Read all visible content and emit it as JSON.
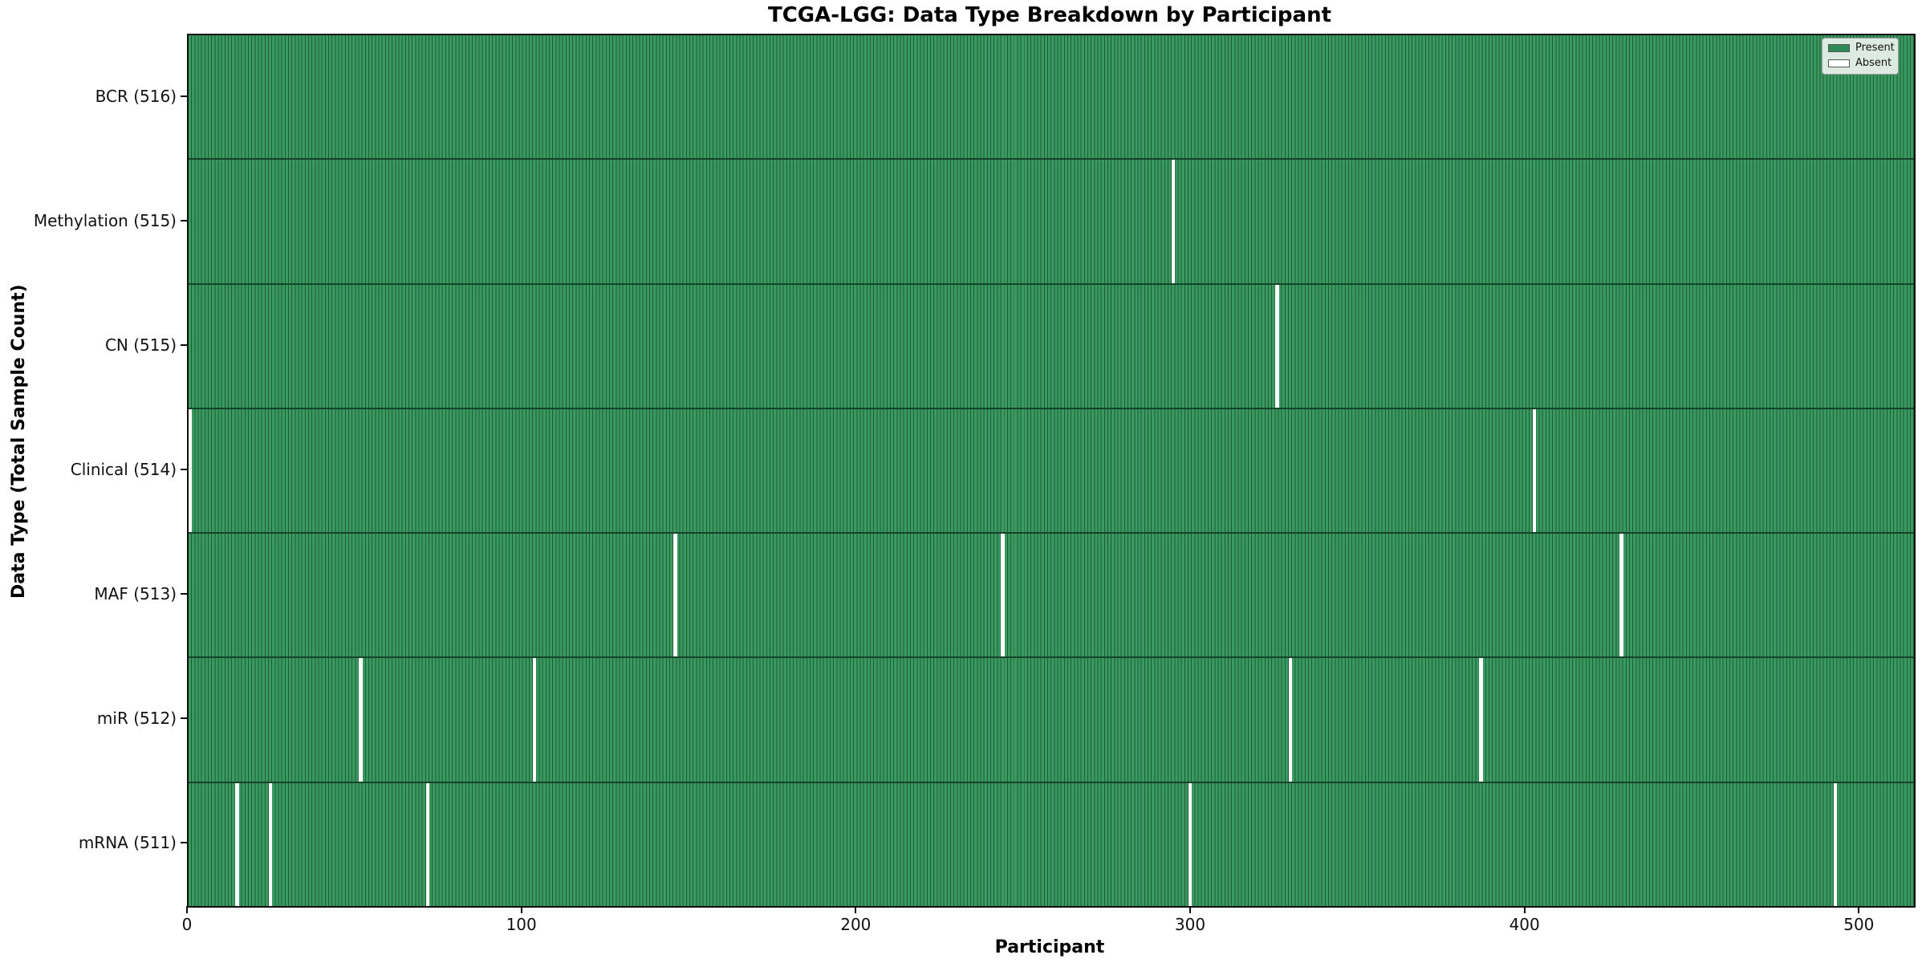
{
  "chart_data": {
    "type": "heatmap",
    "title": "TCGA-LGG: Data Type Breakdown by Participant",
    "xlabel": "Participant",
    "ylabel": "Data Type (Total Sample Count)",
    "x_ticks": [
      0,
      100,
      200,
      300,
      400,
      500
    ],
    "x_range": [
      0,
      516
    ],
    "n_participants": 516,
    "grid": false,
    "legend": {
      "position": "upper-right",
      "entries": [
        {
          "label": "Present",
          "color": "#2e8b57"
        },
        {
          "label": "Absent",
          "color": "#ffffff"
        }
      ]
    },
    "rows": [
      {
        "label": "BCR (516)",
        "data_type": "BCR",
        "present_count": 516,
        "absent_participants": []
      },
      {
        "label": "Methylation (515)",
        "data_type": "Methylation",
        "present_count": 515,
        "absent_participants": [
          294
        ]
      },
      {
        "label": "CN (515)",
        "data_type": "CN",
        "present_count": 515,
        "absent_participants": [
          325
        ]
      },
      {
        "label": "Clinical (514)",
        "data_type": "Clinical",
        "present_count": 514,
        "absent_participants": [
          0,
          402
        ]
      },
      {
        "label": "MAF (513)",
        "data_type": "MAF",
        "present_count": 513,
        "absent_participants": [
          145,
          243,
          428
        ]
      },
      {
        "label": "miR (512)",
        "data_type": "miR",
        "present_count": 512,
        "absent_participants": [
          51,
          103,
          329,
          386
        ]
      },
      {
        "label": "mRNA (511)",
        "data_type": "mRNA",
        "present_count": 511,
        "absent_participants": [
          14,
          24,
          71,
          299,
          492
        ]
      }
    ],
    "colors": {
      "present_fill": "#3b9a60",
      "bar_edge": "#1e5c38",
      "absent": "#ffffff",
      "row_separator": "#14432a",
      "spine": "#0e0e0e"
    }
  }
}
